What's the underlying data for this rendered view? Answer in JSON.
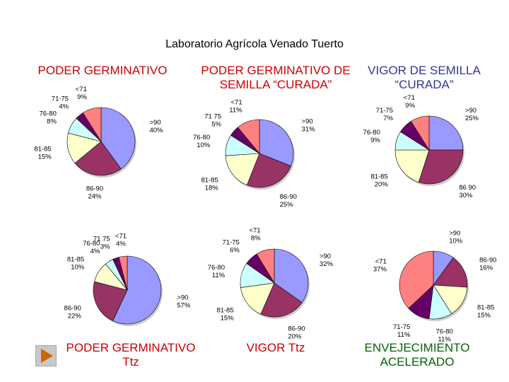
{
  "title": "Laboratorio Agrícola Venado Tuerto",
  "colors": {
    "red": "#cc0000",
    "green": "#006600",
    "navy": "#333399",
    "slices": {
      ">90": "#9999ff",
      "86-90": "#993366",
      "81-85": "#ffffcc",
      "76-80": "#ccffff",
      "71-75": "#660066",
      "<71": "#ff8080"
    }
  },
  "nav": {
    "icon": "play-arrow-icon"
  },
  "chart_data": [
    {
      "type": "pie",
      "heading": "PODER GERMINATIVO",
      "heading_color": "#cc0000",
      "slices": [
        {
          "label": ">90",
          "value": 40,
          "text": "40%"
        },
        {
          "label": "86-90",
          "value": 24,
          "text": "24%"
        },
        {
          "label": "81-85",
          "value": 15,
          "text": "15%"
        },
        {
          "label": "76-80",
          "value": 8,
          "text": "8%"
        },
        {
          "label": "71-75",
          "value": 4,
          "text": "4%"
        },
        {
          "label": "<71",
          "value": 9,
          "text": "9%"
        }
      ]
    },
    {
      "type": "pie",
      "heading": "PODER GERMINATIVO DE\nSEMILLA “CURADA”",
      "heading_color": "#cc0000",
      "slices": [
        {
          "label": ">90",
          "value": 31,
          "text": "31%"
        },
        {
          "label": "86-90",
          "value": 25,
          "text": "25%"
        },
        {
          "label": "81-85",
          "value": 18,
          "text": "18%"
        },
        {
          "label": "76-80",
          "value": 10,
          "text": "10%"
        },
        {
          "label": "71 75",
          "value": 5,
          "text": "5%"
        },
        {
          "label": "<71",
          "value": 11,
          "text": "11%"
        }
      ]
    },
    {
      "type": "pie",
      "heading": "VIGOR DE SEMILLA\n“CURADA”",
      "heading_color": "#333399",
      "slices": [
        {
          "label": ">90",
          "value": 25,
          "text": "25%"
        },
        {
          "label": "86 90",
          "value": 30,
          "text": "30%"
        },
        {
          "label": "81-85",
          "value": 20,
          "text": "20%"
        },
        {
          "label": "76-80",
          "value": 9,
          "text": "9%"
        },
        {
          "label": "71-75",
          "value": 7,
          "text": "7%"
        },
        {
          "label": "<71",
          "value": 9,
          "text": "9%"
        }
      ]
    },
    {
      "type": "pie",
      "heading": "PODER GERMINATIVO\nTtz",
      "heading_color": "#cc0000",
      "slices": [
        {
          "label": ">90",
          "value": 57,
          "text": "57%"
        },
        {
          "label": "86-90",
          "value": 22,
          "text": "22%"
        },
        {
          "label": "81-85",
          "value": 10,
          "text": "10%"
        },
        {
          "label": "76-80",
          "value": 4,
          "text": "4%"
        },
        {
          "label": "71 75",
          "value": 3,
          "text": "3%"
        },
        {
          "label": "<71",
          "value": 4,
          "text": "4%"
        }
      ]
    },
    {
      "type": "pie",
      "heading": "VIGOR Ttz",
      "heading_color": "#cc0000",
      "slices": [
        {
          "label": ">90",
          "value": 32,
          "text": "32%"
        },
        {
          "label": "86-90",
          "value": 20,
          "text": "20%"
        },
        {
          "label": "81-85",
          "value": 15,
          "text": "15%"
        },
        {
          "label": "76-80",
          "value": 11,
          "text": "11%"
        },
        {
          "label": "71-75",
          "value": 6,
          "text": "6%"
        },
        {
          "label": "<71",
          "value": 8,
          "text": "8%"
        }
      ]
    },
    {
      "type": "pie",
      "heading": "ENVEJECIMIENTO\nACELERADO",
      "heading_color": "#006600",
      "slices": [
        {
          "label": ">90",
          "value": 10,
          "text": "10%"
        },
        {
          "label": "86-90",
          "value": 16,
          "text": "16%"
        },
        {
          "label": "81-85",
          "value": 15,
          "text": "15%"
        },
        {
          "label": "76-80",
          "value": 11,
          "text": "11%"
        },
        {
          "label": "71-75",
          "value": 11,
          "text": "11%"
        },
        {
          "label": "<71",
          "value": 37,
          "text": "37%"
        }
      ]
    }
  ]
}
